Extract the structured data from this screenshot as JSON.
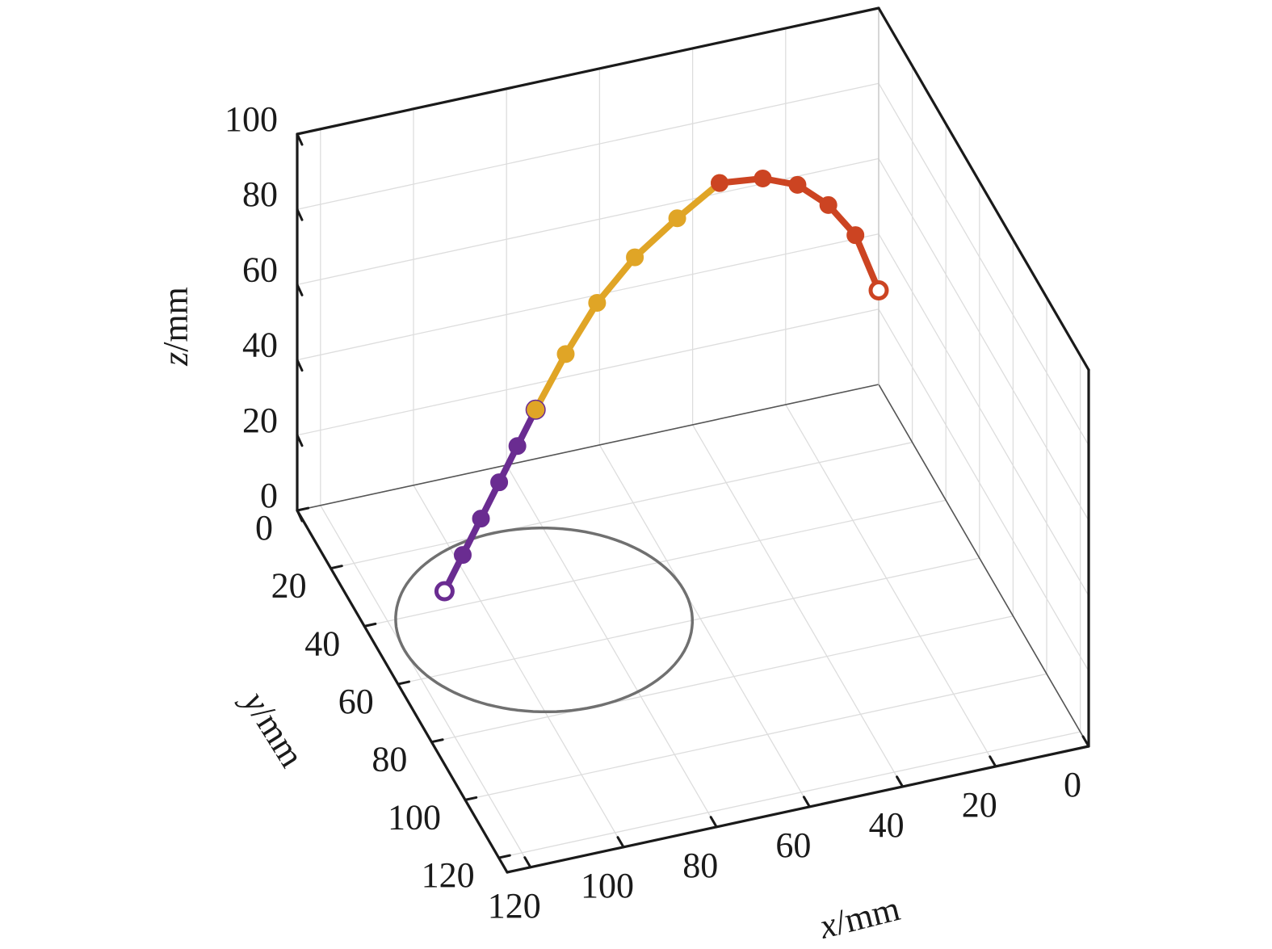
{
  "chart_data": {
    "type": "line3d",
    "axes": {
      "x": {
        "label_var": "x",
        "label_unit": "/mm",
        "ticks": [
          0,
          20,
          40,
          60,
          80,
          100,
          120
        ],
        "range": [
          0,
          125
        ]
      },
      "y": {
        "label_var": "y",
        "label_unit": "/mm",
        "ticks": [
          0,
          20,
          40,
          60,
          80,
          100,
          120
        ],
        "range": [
          0,
          125
        ]
      },
      "z": {
        "label_var": "z",
        "label_unit": "/mm",
        "ticks": [
          0,
          20,
          40,
          60,
          80,
          100
        ],
        "range": [
          0,
          100
        ]
      }
    },
    "grid": true,
    "colors": {
      "segment_1": "#6a2c91",
      "segment_2": "#e0a526",
      "segment_3": "#cc4422",
      "circle": "#707070",
      "axis": "#1a1a1a",
      "grid": "#dddddd"
    },
    "series": [
      {
        "color_key": "segment_1",
        "points": [
          [
            115,
            60,
            22
          ],
          [
            110,
            57,
            28
          ],
          [
            105,
            54,
            34
          ],
          [
            100,
            51,
            40
          ],
          [
            95,
            48,
            46
          ],
          [
            90,
            45,
            52
          ]
        ]
      },
      {
        "color_key": "segment_2",
        "points": [
          [
            90,
            45,
            52
          ],
          [
            81,
            38,
            59
          ],
          [
            71,
            29,
            63
          ],
          [
            60,
            21,
            66
          ],
          [
            48,
            13,
            67
          ],
          [
            36,
            5,
            67
          ]
        ]
      },
      {
        "color_key": "segment_3",
        "points": [
          [
            36,
            5,
            67
          ],
          [
            26,
            3,
            64
          ],
          [
            18,
            1.5,
            59
          ],
          [
            11,
            0.5,
            51
          ],
          [
            5,
            0,
            41
          ],
          [
            0,
            0,
            25
          ]
        ]
      }
    ],
    "circle": {
      "center": [
        90,
        50,
        0
      ],
      "radius": 30
    }
  }
}
